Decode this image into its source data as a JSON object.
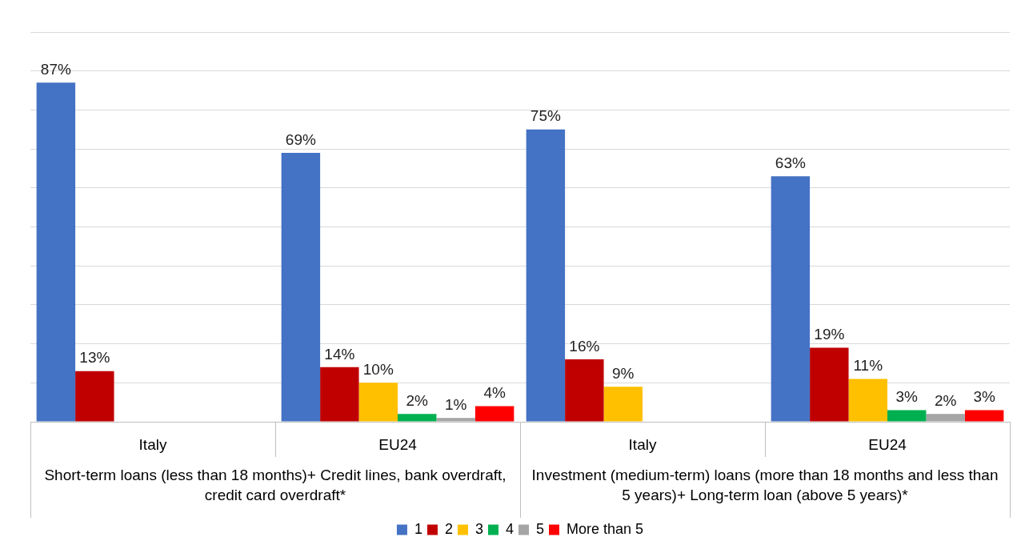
{
  "chart_data": {
    "type": "bar",
    "categories": [
      "Italy",
      "EU24",
      "Italy",
      "EU24"
    ],
    "series": [
      {
        "name": "1",
        "color": "#4472c4",
        "values": [
          87,
          69,
          75,
          63
        ],
        "value_labels": [
          "87%",
          "69%",
          "75%",
          "63%"
        ]
      },
      {
        "name": "2",
        "color": "#c00000",
        "values": [
          13,
          14,
          16,
          19
        ],
        "value_labels": [
          "13%",
          "14%",
          "16%",
          "19%"
        ]
      },
      {
        "name": "3",
        "color": "#ffc000",
        "values": [
          null,
          10,
          9,
          11
        ],
        "value_labels": [
          null,
          "10%",
          "9%",
          "11%"
        ]
      },
      {
        "name": "4",
        "color": "#00b050",
        "values": [
          null,
          2,
          null,
          3
        ],
        "value_labels": [
          null,
          "2%",
          null,
          "3%"
        ]
      },
      {
        "name": "5",
        "color": "#a5a5a5",
        "values": [
          null,
          1,
          null,
          2
        ],
        "value_labels": [
          null,
          "1%",
          null,
          "2%"
        ]
      },
      {
        "name": "More than 5",
        "color": "#ff0000",
        "values": [
          null,
          4,
          null,
          3
        ],
        "value_labels": [
          null,
          "4%",
          null,
          "3%"
        ]
      }
    ],
    "annotations": [
      "Short-term loans (less than 18 months)+ Credit lines, bank overdraft, credit card overdraft*",
      "Investment (medium-term) loans (more than 18 months and less than 5 years)+ Long-term loan (above 5 years)*"
    ],
    "ylim": [
      0,
      100
    ],
    "yticks": [
      {
        "value": 0,
        "label": null
      },
      {
        "value": 10,
        "label": null
      },
      {
        "value": 20,
        "label": null
      },
      {
        "value": 30,
        "label": null
      },
      {
        "value": 40,
        "label": null
      },
      {
        "value": 50,
        "label": null
      },
      {
        "value": 60,
        "label": null
      },
      {
        "value": 70,
        "label": null
      },
      {
        "value": 80,
        "label": null
      },
      {
        "value": 90,
        "label": null
      },
      {
        "value": 100,
        "label": null
      }
    ],
    "tick_labels": "x",
    "grid": "y",
    "legend": "bottom"
  }
}
